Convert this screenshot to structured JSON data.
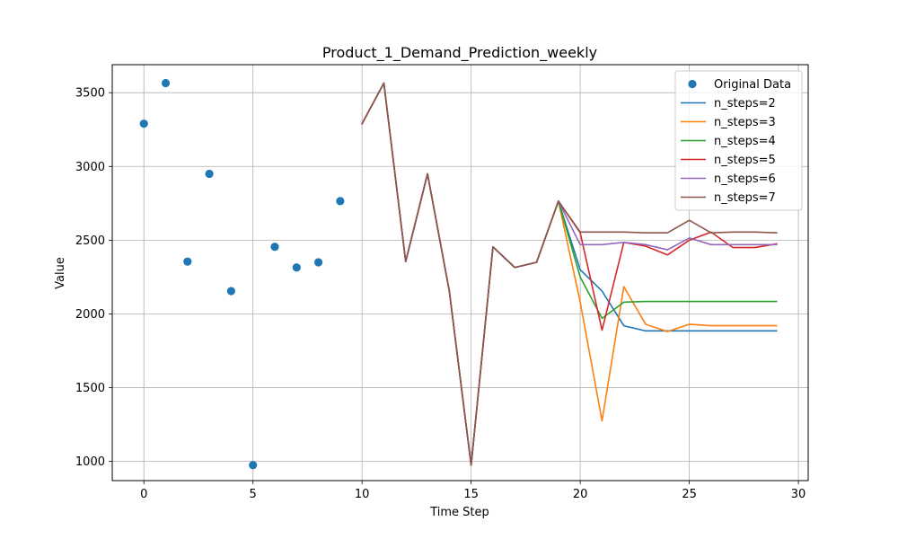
{
  "chart_data": {
    "type": "line",
    "title": "Product_1_Demand_Prediction_weekly",
    "xlabel": "Time Step",
    "ylabel": "Value",
    "xlim": [
      -1.45,
      30.45
    ],
    "ylim": [
      870,
      3690
    ],
    "xticks": [
      0,
      5,
      10,
      15,
      20,
      25,
      30
    ],
    "yticks": [
      1000,
      1500,
      2000,
      2500,
      3000,
      3500
    ],
    "grid": true,
    "legend_position": "top-right",
    "scatter": {
      "name": "Original Data",
      "color": "#1f77b4",
      "x": [
        0,
        1,
        2,
        3,
        4,
        5,
        6,
        7,
        8,
        9
      ],
      "y": [
        3290,
        3565,
        2355,
        2950,
        2155,
        975,
        2455,
        2315,
        2350,
        2765
      ]
    },
    "series": [
      {
        "name": "n_steps=2",
        "color": "#1f77b4",
        "x": [
          10,
          11,
          12,
          13,
          14,
          15,
          16,
          17,
          18,
          19,
          20,
          21,
          22,
          23,
          24,
          25,
          26,
          27,
          28,
          29
        ],
        "values": [
          3290,
          3565,
          2355,
          2950,
          2155,
          975,
          2455,
          2315,
          2350,
          2765,
          2300,
          2155,
          1920,
          1885,
          1885,
          1885,
          1885,
          1885,
          1885,
          1885
        ]
      },
      {
        "name": "n_steps=3",
        "color": "#ff7f0e",
        "x": [
          10,
          11,
          12,
          13,
          14,
          15,
          16,
          17,
          18,
          19,
          20,
          21,
          22,
          23,
          24,
          25,
          26,
          27,
          28,
          29
        ],
        "values": [
          3290,
          3565,
          2355,
          2950,
          2155,
          975,
          2455,
          2315,
          2350,
          2765,
          2080,
          1275,
          2185,
          1930,
          1880,
          1930,
          1920,
          1920,
          1920,
          1920
        ]
      },
      {
        "name": "n_steps=4",
        "color": "#2ca02c",
        "x": [
          10,
          11,
          12,
          13,
          14,
          15,
          16,
          17,
          18,
          19,
          20,
          21,
          22,
          23,
          24,
          25,
          26,
          27,
          28,
          29
        ],
        "values": [
          3290,
          3565,
          2355,
          2950,
          2155,
          975,
          2455,
          2315,
          2350,
          2765,
          2250,
          1970,
          2080,
          2085,
          2085,
          2085,
          2085,
          2085,
          2085,
          2085
        ]
      },
      {
        "name": "n_steps=5",
        "color": "#d62728",
        "x": [
          10,
          11,
          12,
          13,
          14,
          15,
          16,
          17,
          18,
          19,
          20,
          21,
          22,
          23,
          24,
          25,
          26,
          27,
          28,
          29
        ],
        "values": [
          3290,
          3565,
          2355,
          2950,
          2155,
          975,
          2455,
          2315,
          2350,
          2765,
          2550,
          1890,
          2485,
          2460,
          2400,
          2500,
          2555,
          2450,
          2450,
          2475
        ]
      },
      {
        "name": "n_steps=6",
        "color": "#9467bd",
        "x": [
          10,
          11,
          12,
          13,
          14,
          15,
          16,
          17,
          18,
          19,
          20,
          21,
          22,
          23,
          24,
          25,
          26,
          27,
          28,
          29
        ],
        "values": [
          3290,
          3565,
          2355,
          2950,
          2155,
          975,
          2455,
          2315,
          2350,
          2765,
          2470,
          2470,
          2485,
          2470,
          2435,
          2515,
          2470,
          2470,
          2470,
          2470
        ]
      },
      {
        "name": "n_steps=7",
        "color": "#8c564b",
        "x": [
          10,
          11,
          12,
          13,
          14,
          15,
          16,
          17,
          18,
          19,
          20,
          21,
          22,
          23,
          24,
          25,
          26,
          27,
          28,
          29
        ],
        "values": [
          3290,
          3565,
          2355,
          2950,
          2155,
          975,
          2455,
          2315,
          2350,
          2765,
          2555,
          2555,
          2555,
          2550,
          2550,
          2635,
          2550,
          2555,
          2555,
          2550
        ]
      }
    ]
  }
}
